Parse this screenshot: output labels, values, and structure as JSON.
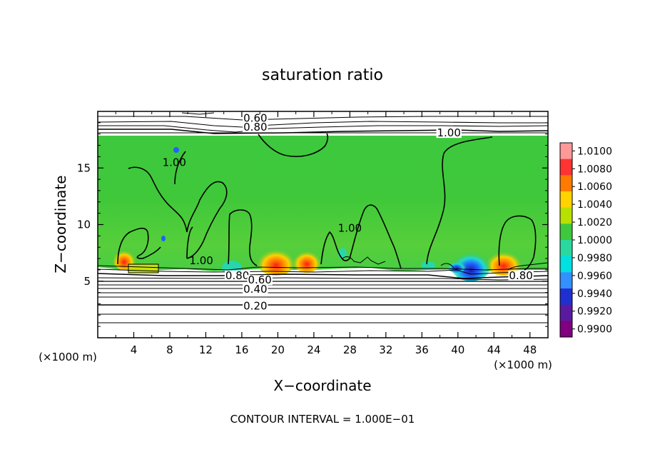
{
  "chart_data": {
    "type": "heatmap",
    "title": "saturation ratio",
    "xlabel": "X−coordinate",
    "ylabel": "Z−coordinate",
    "x_unit": "(×1000 m)",
    "y_unit": "(×1000 m)",
    "xlim": [
      0,
      50
    ],
    "ylim": [
      0,
      20
    ],
    "xticks": [
      4,
      8,
      12,
      16,
      20,
      24,
      28,
      32,
      36,
      40,
      44,
      48
    ],
    "yticks": [
      5,
      10,
      15
    ],
    "colorbar": {
      "levels": [
        "1.0100",
        "1.0080",
        "1.0060",
        "1.0040",
        "1.0020",
        "1.0000",
        "0.9980",
        "0.9960",
        "0.9940",
        "0.9920",
        "0.9900"
      ],
      "colors": [
        "#ff9999",
        "#ff3333",
        "#ff7a00",
        "#ffd200",
        "#b8e000",
        "#3ec83e",
        "#2bd8a0",
        "#00e0e0",
        "#3390ff",
        "#2030d0",
        "#5a1aa0",
        "#800080"
      ]
    },
    "contour_labels": [
      {
        "text": "0.60",
        "x": 17.5,
        "z": 19.4
      },
      {
        "text": "0.80",
        "x": 17.5,
        "z": 18.6
      },
      {
        "text": "1.00",
        "x": 39.0,
        "z": 18.1
      },
      {
        "text": "1.00",
        "x": 8.5,
        "z": 15.5
      },
      {
        "text": "1.00",
        "x": 11.5,
        "z": 6.8
      },
      {
        "text": "1.00",
        "x": 28.0,
        "z": 9.7
      },
      {
        "text": "0.80",
        "x": 15.5,
        "z": 5.5
      },
      {
        "text": "0.60",
        "x": 18.0,
        "z": 5.1
      },
      {
        "text": "0.40",
        "x": 17.5,
        "z": 4.3
      },
      {
        "text": "0.20",
        "x": 17.5,
        "z": 2.8
      },
      {
        "text": "0.80",
        "x": 47.0,
        "z": 5.5
      }
    ],
    "footer": "CONTOUR INTERVAL = 1.000E−01"
  }
}
